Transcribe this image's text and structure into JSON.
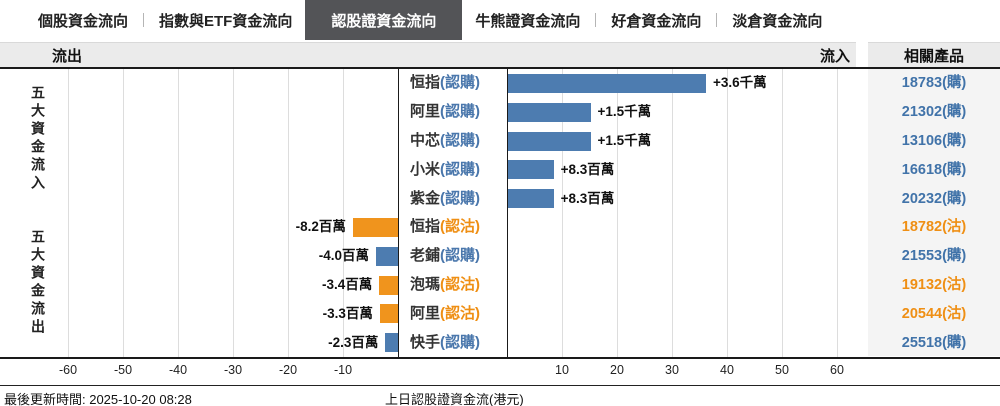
{
  "tabs": [
    {
      "label": "個股資金流向",
      "active": false
    },
    {
      "label": "指數與ETF資金流向",
      "active": false
    },
    {
      "label": "認股證資金流向",
      "active": true
    },
    {
      "label": "牛熊證資金流向",
      "active": false
    },
    {
      "label": "好倉資金流向",
      "active": false
    },
    {
      "label": "淡倉資金流向",
      "active": false
    }
  ],
  "header": {
    "outflow_label": "流出",
    "inflow_label": "流入",
    "related_products_label": "相關產品"
  },
  "sections": {
    "inflow_title": "五大資金流入",
    "outflow_title": "五大資金流出"
  },
  "footer": {
    "last_update": "最後更新時間: 2025-10-20 08:28",
    "chart_caption": "上日認股證資金流(港元)"
  },
  "colors": {
    "call_blue_bar": "#4d7cb0",
    "call_blue_text": "#4173a9",
    "put_orange_bar": "#f0941d",
    "put_orange_text": "#ef8f14",
    "active_tab_bg": "#535457"
  },
  "chart_data": {
    "type": "bar",
    "orientation": "horizontal",
    "title": "上日認股證資金流(港元)",
    "unit": "百萬港元",
    "xlim": [
      -65,
      65
    ],
    "grid": true,
    "ticks": [
      "-60",
      "-50",
      "-40",
      "-30",
      "-20",
      "-10",
      "10",
      "20",
      "30",
      "40",
      "50",
      "60"
    ],
    "tick_values": [
      -60,
      -50,
      -40,
      -30,
      -20,
      -10,
      10,
      20,
      30,
      40,
      50,
      60
    ],
    "rows": [
      {
        "name": "恒指",
        "type_label": "(認購)",
        "value_label": "+3.6千萬",
        "value_millions": 36,
        "product": "18783(購)",
        "color": "blue",
        "section": "inflow"
      },
      {
        "name": "阿里",
        "type_label": "(認購)",
        "value_label": "+1.5千萬",
        "value_millions": 15,
        "product": "21302(購)",
        "color": "blue",
        "section": "inflow"
      },
      {
        "name": "中芯",
        "type_label": "(認購)",
        "value_label": "+1.5千萬",
        "value_millions": 15,
        "product": "13106(購)",
        "color": "blue",
        "section": "inflow"
      },
      {
        "name": "小米",
        "type_label": "(認購)",
        "value_label": "+8.3百萬",
        "value_millions": 8.3,
        "product": "16618(購)",
        "color": "blue",
        "section": "inflow"
      },
      {
        "name": "紫金",
        "type_label": "(認購)",
        "value_label": "+8.3百萬",
        "value_millions": 8.3,
        "product": "20232(購)",
        "color": "blue",
        "section": "inflow"
      },
      {
        "name": "恒指",
        "type_label": "(認沽)",
        "value_label": "-8.2百萬",
        "value_millions": -8.2,
        "product": "18782(沽)",
        "color": "orange",
        "section": "outflow"
      },
      {
        "name": "老鋪",
        "type_label": "(認購)",
        "value_label": "-4.0百萬",
        "value_millions": -4.0,
        "product": "21553(購)",
        "color": "blue",
        "section": "outflow"
      },
      {
        "name": "泡瑪",
        "type_label": "(認沽)",
        "value_label": "-3.4百萬",
        "value_millions": -3.4,
        "product": "19132(沽)",
        "color": "orange",
        "section": "outflow"
      },
      {
        "name": "阿里",
        "type_label": "(認沽)",
        "value_label": "-3.3百萬",
        "value_millions": -3.3,
        "product": "20544(沽)",
        "color": "orange",
        "section": "outflow"
      },
      {
        "name": "快手",
        "type_label": "(認購)",
        "value_label": "-2.3百萬",
        "value_millions": -2.3,
        "product": "25518(購)",
        "color": "blue",
        "section": "outflow"
      }
    ]
  }
}
